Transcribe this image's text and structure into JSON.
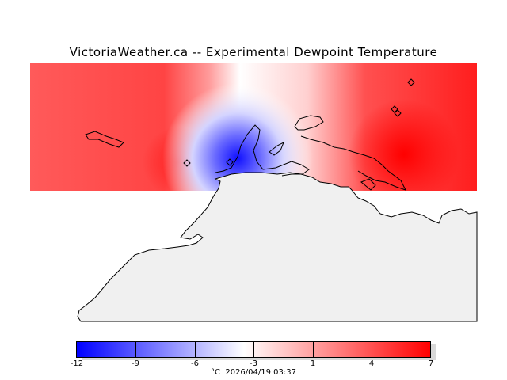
{
  "map": {
    "title": "VictoriaWeather.ca -- Experimental Dewpoint Temperature",
    "land_color": "#f0f0f0",
    "coastline_color": "#000000",
    "station_markers": 5
  },
  "legend": {
    "unit": "°C",
    "timestamp": "2026/04/19 03:37",
    "ticks": [
      "-12",
      "-9",
      "-6",
      "-3",
      "1",
      "4",
      "7"
    ],
    "colors": {
      "min": "#0000ff",
      "mid": "#ffffff",
      "max": "#ff0000"
    }
  }
}
